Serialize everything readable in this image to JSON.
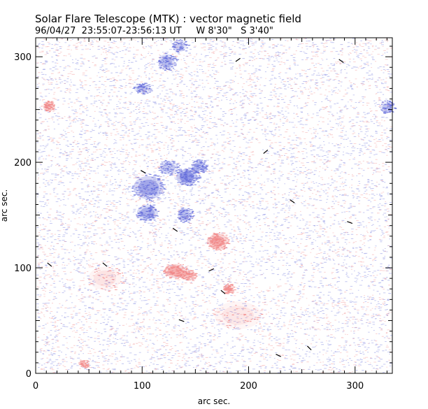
{
  "header": {
    "title": "Solar Flare Telescope (MTK) : vector magnetic field",
    "subtitle": "96/04/27  23:55:07-23:56:13 UT     W 8'30\"   S 3'40\""
  },
  "colors": {
    "negative_polarity": "#5a63d8",
    "positive_polarity": "#f08080",
    "transverse_vector": "#000000",
    "frame": "#000000"
  },
  "chart_data": {
    "type": "heatmap",
    "title": "Solar Flare Telescope (MTK) : vector magnetic field",
    "subtitle": "96/04/27  23:55:07-23:56:13 UT     W 8'30\"   S 3'40\"",
    "xlabel": "arc sec.",
    "ylabel": "arc sec.",
    "xlim": [
      0,
      335
    ],
    "ylim": [
      0,
      318
    ],
    "x_ticks": [
      0,
      100,
      200,
      300
    ],
    "y_ticks": [
      0,
      100,
      200,
      300
    ],
    "regions": [
      {
        "polarity": "negative",
        "x": 142,
        "y": 186,
        "rx": 9,
        "ry": 7,
        "strength": 0.9
      },
      {
        "polarity": "negative",
        "x": 153,
        "y": 196,
        "rx": 6,
        "ry": 5,
        "strength": 0.6
      },
      {
        "polarity": "negative",
        "x": 106,
        "y": 176,
        "rx": 13,
        "ry": 10,
        "strength": 0.75
      },
      {
        "polarity": "negative",
        "x": 105,
        "y": 152,
        "rx": 9,
        "ry": 7,
        "strength": 0.65
      },
      {
        "polarity": "negative",
        "x": 140,
        "y": 150,
        "rx": 6,
        "ry": 6,
        "strength": 0.55
      },
      {
        "polarity": "negative",
        "x": 125,
        "y": 195,
        "rx": 8,
        "ry": 6,
        "strength": 0.45
      },
      {
        "polarity": "negative",
        "x": 123,
        "y": 295,
        "rx": 7,
        "ry": 7,
        "strength": 0.55
      },
      {
        "polarity": "negative",
        "x": 100,
        "y": 270,
        "rx": 7,
        "ry": 4,
        "strength": 0.45
      },
      {
        "polarity": "negative",
        "x": 135,
        "y": 310,
        "rx": 6,
        "ry": 5,
        "strength": 0.4
      },
      {
        "polarity": "negative",
        "x": 330,
        "y": 252,
        "rx": 6,
        "ry": 5,
        "strength": 0.45
      },
      {
        "polarity": "positive",
        "x": 171,
        "y": 125,
        "rx": 8,
        "ry": 7,
        "strength": 0.95
      },
      {
        "polarity": "positive",
        "x": 131,
        "y": 97,
        "rx": 9,
        "ry": 6,
        "strength": 0.85
      },
      {
        "polarity": "positive",
        "x": 143,
        "y": 93,
        "rx": 6,
        "ry": 4,
        "strength": 0.6
      },
      {
        "polarity": "positive",
        "x": 181,
        "y": 80,
        "rx": 4,
        "ry": 4,
        "strength": 0.6
      },
      {
        "polarity": "positive",
        "x": 12,
        "y": 253,
        "rx": 4,
        "ry": 4,
        "strength": 0.6
      },
      {
        "polarity": "positive",
        "x": 45,
        "y": 9,
        "rx": 4,
        "ry": 3,
        "strength": 0.4
      },
      {
        "polarity": "positive",
        "x": 65,
        "y": 90,
        "rx": 14,
        "ry": 10,
        "strength": 0.25
      },
      {
        "polarity": "positive",
        "x": 190,
        "y": 55,
        "rx": 20,
        "ry": 12,
        "strength": 0.22
      }
    ],
    "transverse_vectors": [
      {
        "x": 190,
        "y": 297,
        "angle": 35
      },
      {
        "x": 287,
        "y": 296,
        "angle": -35
      },
      {
        "x": 216,
        "y": 210,
        "angle": 40
      },
      {
        "x": 101,
        "y": 191,
        "angle": -30
      },
      {
        "x": 241,
        "y": 163,
        "angle": -35
      },
      {
        "x": 295,
        "y": 143,
        "angle": -20
      },
      {
        "x": 131,
        "y": 136,
        "angle": -35
      },
      {
        "x": 65,
        "y": 103,
        "angle": -40
      },
      {
        "x": 13,
        "y": 103,
        "angle": -40
      },
      {
        "x": 165,
        "y": 98,
        "angle": 25
      },
      {
        "x": 176,
        "y": 77,
        "angle": -40
      },
      {
        "x": 137,
        "y": 50,
        "angle": -20
      },
      {
        "x": 257,
        "y": 24,
        "angle": -45
      },
      {
        "x": 228,
        "y": 17,
        "angle": -25
      }
    ]
  }
}
